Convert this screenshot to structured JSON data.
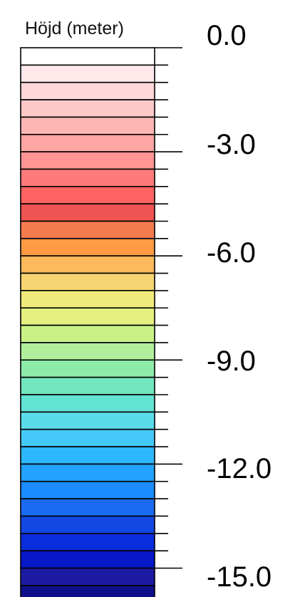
{
  "legend": {
    "title": "Höjd (meter)",
    "max_value": 0.0,
    "min_value": -15.0,
    "step": 0.5,
    "major_step": 3.0,
    "tick_labels": [
      "0.0",
      "-3.0",
      "-6.0",
      "-9.0",
      "-12.0",
      "-15.0"
    ],
    "colors": [
      "#ffffff",
      "#ffe8ea",
      "#ffd7d8",
      "#ffc8c8",
      "#ffb7b5",
      "#ffa6a4",
      "#ff9494",
      "#ff7b79",
      "#ff6463",
      "#ee5451",
      "#f57c4f",
      "#ff9a44",
      "#fdb95b",
      "#f6d572",
      "#f0ea7b",
      "#e4f07f",
      "#c9f286",
      "#b0f09c",
      "#8eeba9",
      "#72e6be",
      "#62e3d3",
      "#5adde9",
      "#45c9f9",
      "#2eb7ff",
      "#21a3ff",
      "#1b8cff",
      "#1a6bf0",
      "#1248e4",
      "#0a2ddb",
      "#0618c8",
      "#1c1aa2",
      "#0f0f8a"
    ]
  }
}
